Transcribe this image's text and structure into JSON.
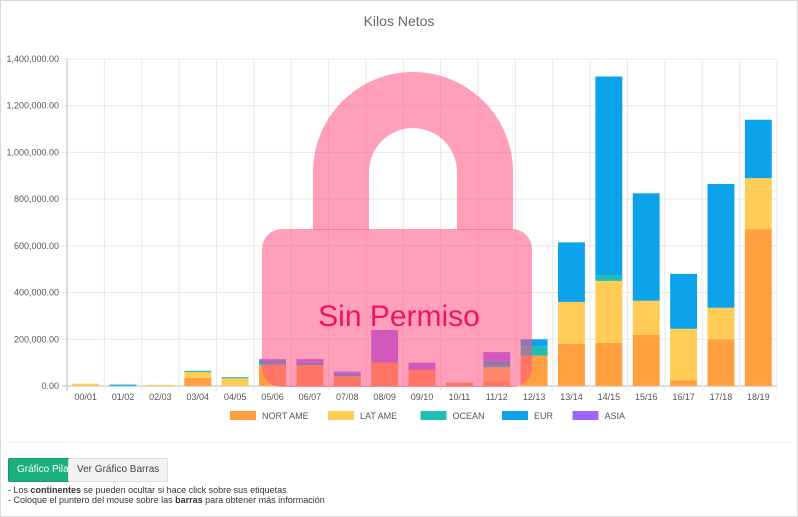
{
  "chart_data": {
    "type": "bar",
    "stacked": true,
    "title": "Kilos Netos",
    "categories": [
      "00/01",
      "01/02",
      "02/03",
      "03/04",
      "04/05",
      "05/06",
      "06/07",
      "07/08",
      "08/09",
      "09/10",
      "10/11",
      "11/12",
      "12/13",
      "13/14",
      "14/15",
      "15/16",
      "16/17",
      "17/18",
      "18/19"
    ],
    "y_ticks": [
      "0.00",
      "200,000.00",
      "400,000.00",
      "600,000.00",
      "800,000.00",
      "1,000,000.00",
      "1,200,000.00",
      "1,400,000.00"
    ],
    "ylim": [
      0,
      1400000
    ],
    "grid": true,
    "legend_position": "bottom",
    "series": [
      {
        "name": "NORT AME",
        "color": "#ff9f40",
        "values": [
          0,
          0,
          0,
          35000,
          0,
          90000,
          90000,
          42000,
          100000,
          70000,
          15000,
          20000,
          130000,
          180000,
          185000,
          220000,
          25000,
          200000,
          670000
        ]
      },
      {
        "name": "LAT AME",
        "color": "#ffcd56",
        "values": [
          10000,
          0,
          5000,
          25000,
          33000,
          0,
          0,
          0,
          0,
          0,
          0,
          60000,
          0,
          180000,
          265000,
          145000,
          220000,
          135000,
          220000
        ]
      },
      {
        "name": "OCEAN",
        "color": "#1fbdb3",
        "values": [
          0,
          3000,
          0,
          5000,
          5000,
          5000,
          0,
          0,
          0,
          0,
          0,
          10000,
          40000,
          0,
          25000,
          0,
          0,
          0,
          0
        ]
      },
      {
        "name": "EUR",
        "color": "#0da3ea",
        "values": [
          0,
          3000,
          0,
          0,
          0,
          10000,
          10000,
          10000,
          0,
          0,
          0,
          15000,
          30000,
          255000,
          850000,
          460000,
          235000,
          530000,
          250000
        ]
      },
      {
        "name": "ASIA",
        "color": "#9966ff",
        "values": [
          0,
          0,
          0,
          0,
          0,
          10000,
          15000,
          10000,
          140000,
          30000,
          0,
          40000,
          0,
          0,
          0,
          0,
          0,
          0,
          0
        ]
      }
    ],
    "overlay_text": "Sin Permiso"
  },
  "buttons": {
    "stack": "Gráfico Pila",
    "bars": "Ver Gráfico Barras"
  },
  "notes": {
    "line1_a": "- Los ",
    "line1_b": "continentes",
    "line1_c": " se pueden ocultar si hace click sobre sus etiquetas",
    "line2_a": "- Coloque el puntero del mouse sobre las ",
    "line2_b": "barras",
    "line2_c": " para obtener más información"
  }
}
